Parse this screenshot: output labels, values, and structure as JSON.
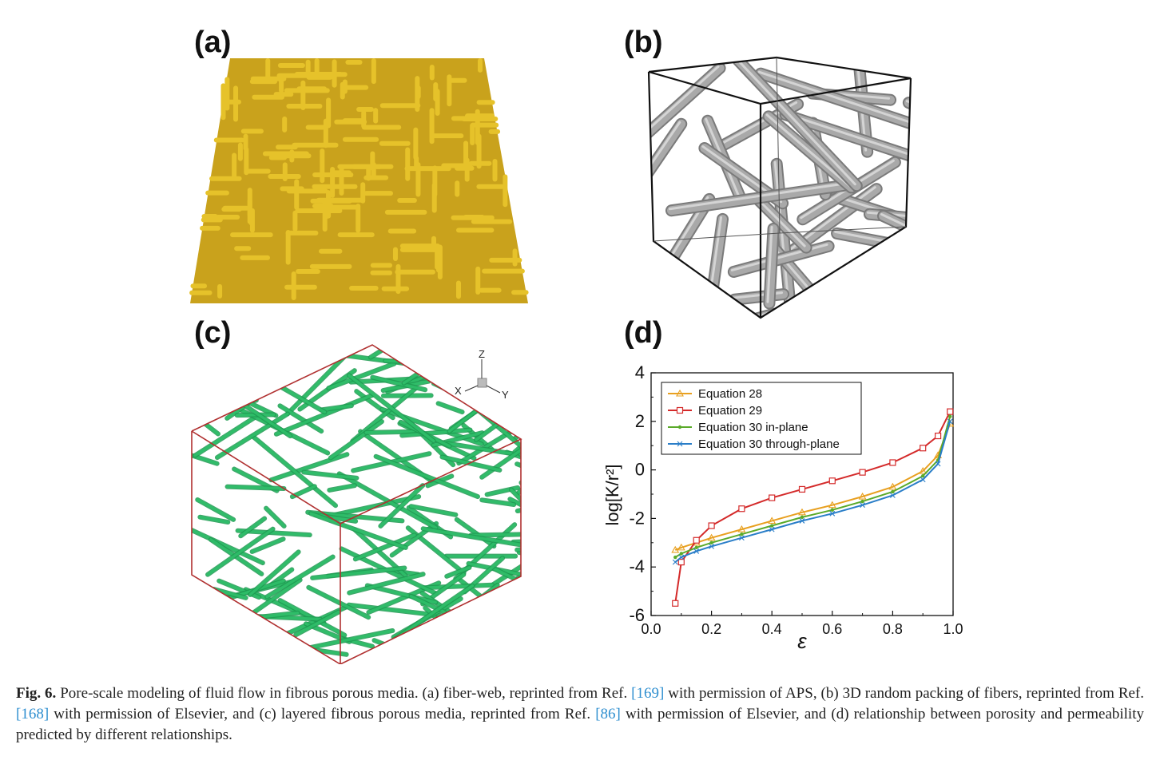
{
  "labels": {
    "a": "(a)",
    "b": "(b)",
    "c": "(c)",
    "d": "(d)"
  },
  "panel_c_axes": {
    "z": "Z",
    "x": "X",
    "y": "Y"
  },
  "caption": {
    "fig_no": "Fig. 6.",
    "t1": " Pore-scale modeling of fluid flow in fibrous porous media. (a) fiber-web, reprinted from Ref. ",
    "r1": "[169]",
    "t2": " with permission of APS, (b) 3D random packing of fibers, reprinted from Ref. ",
    "r2": "[168]",
    "t3": " with permission of Elsevier, and (c) layered fibrous porous media, reprinted from Ref. ",
    "r3": "[86]",
    "t4": " with permission of Elsevier, and (d) relationship between porosity and permeability predicted by different relationships."
  },
  "colors": {
    "panel_a": "#e6c22a",
    "panel_b": "#a9a9a9",
    "panel_c": "#2fbf6a",
    "panel_c_box": "#b03030"
  },
  "chart_data": {
    "type": "line",
    "xlabel": "ε",
    "ylabel": "log[K/r²]",
    "xlim": [
      0.0,
      1.0
    ],
    "ylim": [
      -6,
      4
    ],
    "xticks": [
      "0.0",
      "0.2",
      "0.4",
      "0.6",
      "0.8",
      "1.0"
    ],
    "yticks": [
      "-6",
      "-4",
      "-2",
      "0",
      "2",
      "4"
    ],
    "legend_position": "top-left",
    "series": [
      {
        "name": "Equation 28",
        "color": "#e8a020",
        "marker": "triangle",
        "points": [
          [
            0.08,
            -3.3
          ],
          [
            0.1,
            -3.2
          ],
          [
            0.15,
            -3.0
          ],
          [
            0.2,
            -2.8
          ],
          [
            0.3,
            -2.45
          ],
          [
            0.4,
            -2.1
          ],
          [
            0.5,
            -1.75
          ],
          [
            0.6,
            -1.45
          ],
          [
            0.7,
            -1.1
          ],
          [
            0.8,
            -0.7
          ],
          [
            0.9,
            -0.05
          ],
          [
            0.95,
            0.6
          ],
          [
            0.99,
            1.9
          ]
        ]
      },
      {
        "name": "Equation 29",
        "color": "#d42a2a",
        "marker": "square",
        "points": [
          [
            0.08,
            -5.5
          ],
          [
            0.1,
            -3.8
          ],
          [
            0.15,
            -2.9
          ],
          [
            0.2,
            -2.3
          ],
          [
            0.3,
            -1.6
          ],
          [
            0.4,
            -1.15
          ],
          [
            0.5,
            -0.8
          ],
          [
            0.6,
            -0.45
          ],
          [
            0.7,
            -0.1
          ],
          [
            0.8,
            0.3
          ],
          [
            0.9,
            0.9
          ],
          [
            0.95,
            1.4
          ],
          [
            0.99,
            2.4
          ]
        ]
      },
      {
        "name": "Equation 30 in-plane",
        "color": "#5aaa2a",
        "marker": "dot",
        "points": [
          [
            0.08,
            -3.6
          ],
          [
            0.1,
            -3.45
          ],
          [
            0.15,
            -3.2
          ],
          [
            0.2,
            -3.0
          ],
          [
            0.3,
            -2.65
          ],
          [
            0.4,
            -2.3
          ],
          [
            0.5,
            -1.95
          ],
          [
            0.6,
            -1.65
          ],
          [
            0.7,
            -1.3
          ],
          [
            0.8,
            -0.9
          ],
          [
            0.9,
            -0.25
          ],
          [
            0.95,
            0.4
          ],
          [
            0.99,
            2.2
          ]
        ]
      },
      {
        "name": "Equation 30 through-plane",
        "color": "#2a7ec8",
        "marker": "x",
        "points": [
          [
            0.08,
            -3.8
          ],
          [
            0.1,
            -3.6
          ],
          [
            0.15,
            -3.35
          ],
          [
            0.2,
            -3.15
          ],
          [
            0.3,
            -2.8
          ],
          [
            0.4,
            -2.45
          ],
          [
            0.5,
            -2.1
          ],
          [
            0.6,
            -1.8
          ],
          [
            0.7,
            -1.45
          ],
          [
            0.8,
            -1.05
          ],
          [
            0.9,
            -0.4
          ],
          [
            0.95,
            0.25
          ],
          [
            0.99,
            2.0
          ]
        ]
      }
    ]
  }
}
